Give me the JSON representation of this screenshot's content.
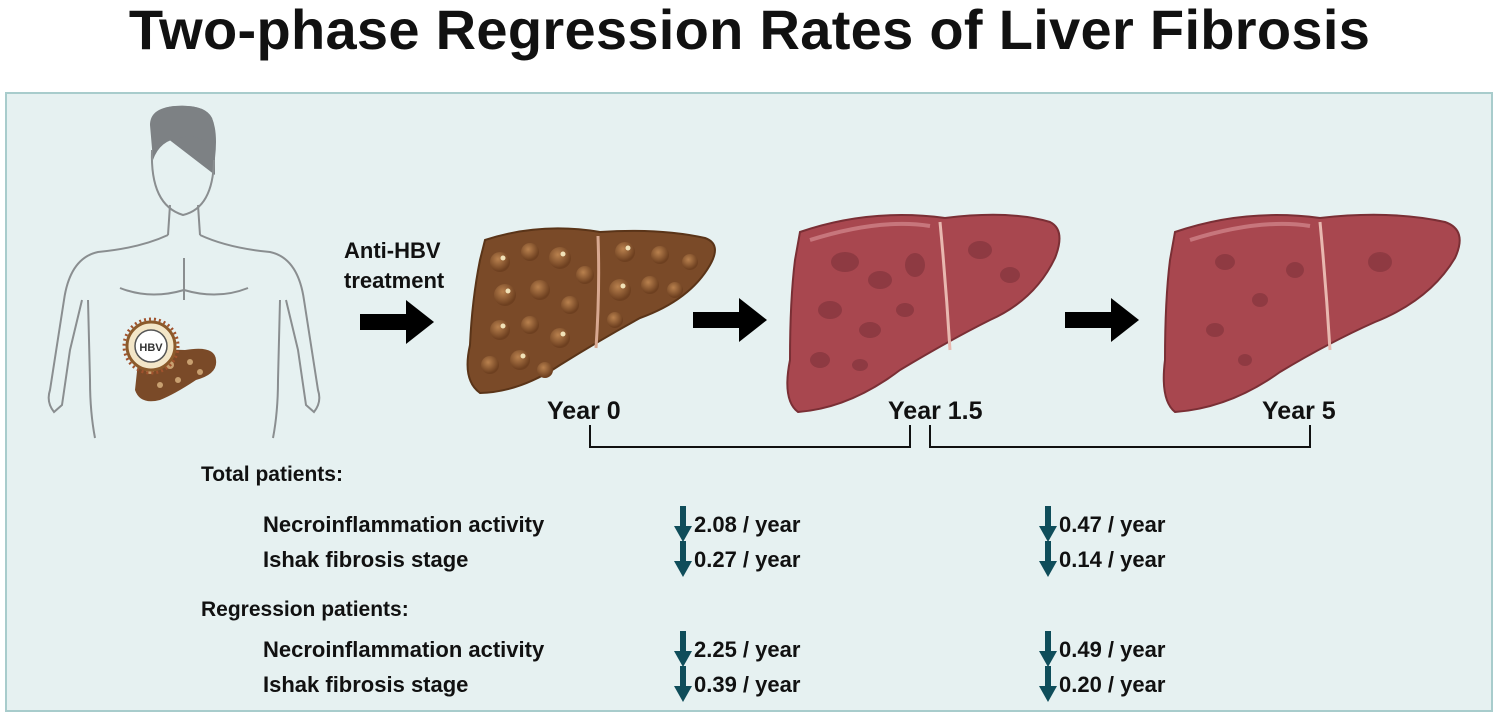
{
  "title": "Two-phase Regression Rates of Liver Fibrosis",
  "treatment_label_line1": "Anti-HBV",
  "treatment_label_line2": "treatment",
  "virus_label": "HBV",
  "timepoints": [
    "Year 0",
    "Year 1.5",
    "Year 5"
  ],
  "colors": {
    "panel_bg": "#e6f1f1",
    "panel_border": "#a8cccc",
    "arrow": "#000000",
    "down_arrow": "#0f4d5a",
    "cirrhotic_liver": "#7a4a28",
    "healing_liver": "#a8474f"
  },
  "groups": [
    {
      "label": "Total patients:",
      "rows": [
        {
          "name": "Necroinflammation activity",
          "phase1": "2.08 / year",
          "phase2": "0.47 / year"
        },
        {
          "name": "Ishak fibrosis stage",
          "phase1": "0.27 / year",
          "phase2": "0.14 / year"
        }
      ]
    },
    {
      "label": "Regression patients:",
      "rows": [
        {
          "name": "Necroinflammation activity",
          "phase1": "2.25 / year",
          "phase2": "0.49 / year"
        },
        {
          "name": "Ishak fibrosis stage",
          "phase1": "0.39 / year",
          "phase2": "0.20 / year"
        }
      ]
    }
  ]
}
